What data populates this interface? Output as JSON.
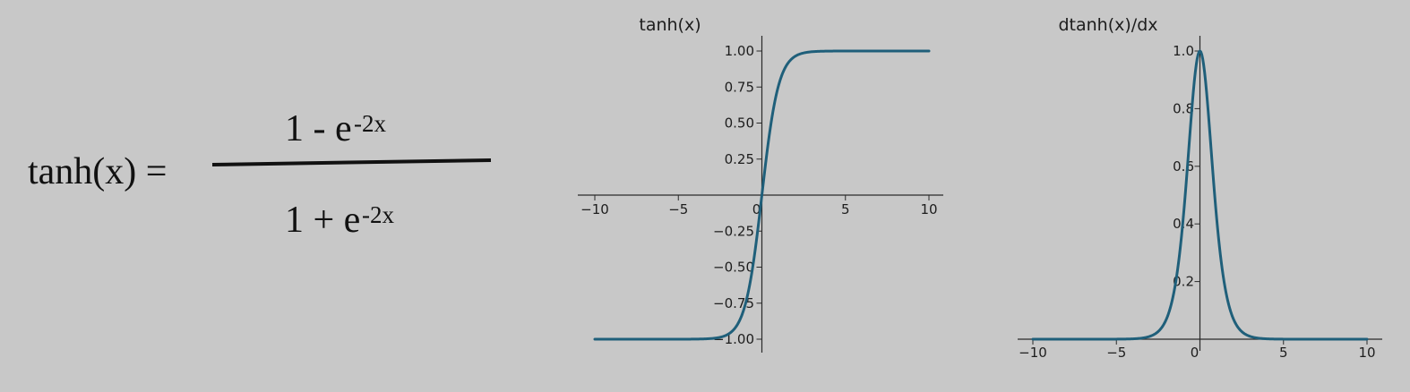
{
  "formula": {
    "lhs": "tanh(x) =",
    "numerator_base": "1 - e",
    "numerator_exponent": "-2x",
    "denominator_base": "1 + e",
    "denominator_exponent": "-2x"
  },
  "chart_data": [
    {
      "type": "line",
      "title": "tanh(x)",
      "function": "tanh",
      "xlim": [
        -10,
        10
      ],
      "ylim": [
        -1,
        1
      ],
      "x_ticks": [
        -10,
        -5,
        0,
        5,
        10
      ],
      "x_tick_labels": [
        "−10",
        "−5",
        "0",
        "5",
        "10"
      ],
      "y_ticks": [
        -1,
        -0.75,
        -0.5,
        -0.25,
        0.25,
        0.5,
        0.75,
        1
      ],
      "y_tick_labels": [
        "−1.00",
        "−0.75",
        "−0.50",
        "−0.25",
        "0.25",
        "0.50",
        "0.75",
        "1.00"
      ],
      "grid": false,
      "spines": "centered",
      "color": "#1f5f7a",
      "series": [
        {
          "x": [
            -10,
            -5,
            -4,
            -3,
            -2.5,
            -2,
            -1.5,
            -1,
            -0.5,
            0,
            0.5,
            1,
            1.5,
            2,
            2.5,
            3,
            4,
            5,
            10
          ],
          "values": [
            -1.0,
            -0.9999,
            -0.9993,
            -0.9951,
            -0.9866,
            -0.964,
            -0.9051,
            -0.7616,
            -0.4621,
            0.0,
            0.4621,
            0.7616,
            0.9051,
            0.964,
            0.9866,
            0.9951,
            0.9993,
            0.9999,
            1.0
          ]
        }
      ]
    },
    {
      "type": "line",
      "title": "dtanh(x)/dx",
      "function": "dtanh",
      "xlim": [
        -10,
        10
      ],
      "ylim": [
        0,
        1
      ],
      "x_ticks": [
        -10,
        -5,
        0,
        5,
        10
      ],
      "x_tick_labels": [
        "−10",
        "−5",
        "0",
        "5",
        "10"
      ],
      "y_ticks": [
        0.2,
        0.4,
        0.6,
        0.8,
        1.0
      ],
      "y_tick_labels": [
        "0.2",
        "0.4",
        "0.6",
        "0.8",
        "1.0"
      ],
      "grid": false,
      "spines": "centered",
      "color": "#1f5f7a",
      "series": [
        {
          "x": [
            -10,
            -5,
            -4,
            -3,
            -2.5,
            -2,
            -1.5,
            -1,
            -0.5,
            0,
            0.5,
            1,
            1.5,
            2,
            2.5,
            3,
            4,
            5,
            10
          ],
          "values": [
            0.0,
            0.0002,
            0.0013,
            0.0099,
            0.0266,
            0.0707,
            0.1807,
            0.42,
            0.7864,
            1.0,
            0.7864,
            0.42,
            0.1807,
            0.0707,
            0.0266,
            0.0099,
            0.0013,
            0.0002,
            0.0
          ]
        }
      ]
    }
  ]
}
